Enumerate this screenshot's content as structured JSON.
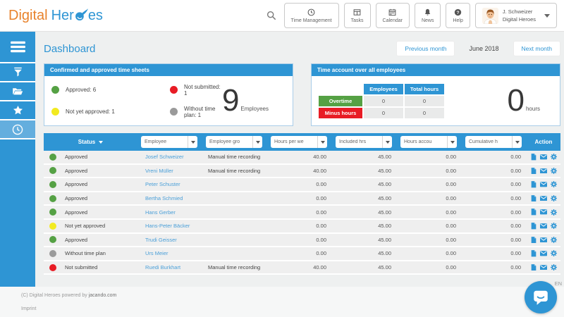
{
  "header": {
    "logo": {
      "word1": "Digital",
      "word2_prefix": "Her",
      "word2_suffix": "es"
    },
    "nav": [
      {
        "id": "time-management",
        "label": "Time Management",
        "icon": "clock-icon"
      },
      {
        "id": "tasks",
        "label": "Tasks",
        "icon": "table-icon"
      },
      {
        "id": "calendar",
        "label": "Calendar",
        "icon": "calendar-icon"
      },
      {
        "id": "news",
        "label": "News",
        "icon": "bell-icon"
      },
      {
        "id": "help",
        "label": "Help",
        "icon": "help-icon"
      }
    ],
    "user": {
      "name": "J. Schweizer",
      "org": "Digital Heroes"
    }
  },
  "sidebar": {
    "items": [
      {
        "id": "menu",
        "icon": "hamburger-icon",
        "active": false,
        "menu": true
      },
      {
        "id": "filter",
        "icon": "filter-icon",
        "active": false
      },
      {
        "id": "documents",
        "icon": "folder-icon",
        "active": false
      },
      {
        "id": "favorites",
        "icon": "star-icon",
        "active": false
      },
      {
        "id": "time",
        "icon": "clock-icon",
        "active": true
      }
    ]
  },
  "page": {
    "title": "Dashboard",
    "prev_month_label": "Previous month",
    "current_month": "June 2018",
    "next_month_label": "Next month"
  },
  "timesheets_panel": {
    "title": "Confirmed and approved time sheets",
    "legend": [
      {
        "label": "Approved: 6",
        "color": "#55a144"
      },
      {
        "label": "Not submitted: 1",
        "color": "#e81c25"
      },
      {
        "label": "Not yet approved: 1",
        "color": "#f2ea20"
      },
      {
        "label": "Without time plan: 1",
        "color": "#9a9a9a"
      }
    ],
    "big_number": "9",
    "big_number_label": "Employees"
  },
  "time_account_panel": {
    "title": "Time account over all employees",
    "columns": [
      "Employees",
      "Total hours"
    ],
    "rows": [
      {
        "label": "Overtime",
        "color": "#55a144",
        "values": [
          "0",
          "0"
        ]
      },
      {
        "label": "Minus hours",
        "color": "#e81c25",
        "values": [
          "0",
          "0"
        ]
      }
    ],
    "big_number": "0",
    "big_number_label": "hours"
  },
  "table": {
    "status_header": "Status",
    "action_header": "Action",
    "filter_columns": [
      "Employee",
      "Employee gro",
      "Hours per we",
      "Included hrs",
      "Hours accou",
      "Cumulative h"
    ],
    "action_icons": [
      "document-icon",
      "mail-icon",
      "gear-icon"
    ],
    "rows": [
      {
        "status": "Approved",
        "status_color": "#55a144",
        "name": "Josef Schweizer",
        "group": "Manual time recording",
        "hours_per_week": "40.00",
        "included_hrs": "45.00",
        "hours_account": "0.00",
        "cumulative": "0.00"
      },
      {
        "status": "Approved",
        "status_color": "#55a144",
        "name": "Vreni Müller",
        "group": "Manual time recording",
        "hours_per_week": "40.00",
        "included_hrs": "45.00",
        "hours_account": "0.00",
        "cumulative": "0.00"
      },
      {
        "status": "Approved",
        "status_color": "#55a144",
        "name": "Peter Schuster",
        "group": "",
        "hours_per_week": "0.00",
        "included_hrs": "45.00",
        "hours_account": "0.00",
        "cumulative": "0.00"
      },
      {
        "status": "Approved",
        "status_color": "#55a144",
        "name": "Bertha Schmied",
        "group": "",
        "hours_per_week": "0.00",
        "included_hrs": "45.00",
        "hours_account": "0.00",
        "cumulative": "0.00"
      },
      {
        "status": "Approved",
        "status_color": "#55a144",
        "name": "Hans Gerber",
        "group": "",
        "hours_per_week": "0.00",
        "included_hrs": "45.00",
        "hours_account": "0.00",
        "cumulative": "0.00"
      },
      {
        "status": "Not yet approved",
        "status_color": "#f2ea20",
        "name": "Hans-Peter Bäcker",
        "group": "",
        "hours_per_week": "0.00",
        "included_hrs": "45.00",
        "hours_account": "0.00",
        "cumulative": "0.00"
      },
      {
        "status": "Approved",
        "status_color": "#55a144",
        "name": "Trudi Geisser",
        "group": "",
        "hours_per_week": "0.00",
        "included_hrs": "45.00",
        "hours_account": "0.00",
        "cumulative": "0.00"
      },
      {
        "status": "Without time plan",
        "status_color": "#9a9a9a",
        "name": "Urs Meier",
        "group": "",
        "hours_per_week": "0.00",
        "included_hrs": "45.00",
        "hours_account": "0.00",
        "cumulative": "0.00"
      },
      {
        "status": "Not submitted",
        "status_color": "#e81c25",
        "name": "Ruedi Burkhart",
        "group": "Manual time recording",
        "hours_per_week": "40.00",
        "included_hrs": "45.00",
        "hours_account": "0.00",
        "cumulative": "0.00"
      }
    ]
  },
  "footer": {
    "copyright": "(C) Digital Heroes powered by ",
    "copyright_link": "jacando.com",
    "imprint": "Imprint",
    "language": "EN"
  },
  "colors": {
    "accent": "#2e95d4",
    "approved": "#55a144",
    "not_submitted": "#e81c25",
    "not_yet_approved": "#f2ea20",
    "without_time_plan": "#9a9a9a",
    "logo_orange": "#e8822b"
  }
}
